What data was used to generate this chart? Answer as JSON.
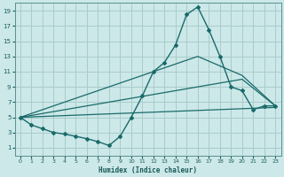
{
  "bg_color": "#cce8e8",
  "grid_color": "#aacccc",
  "line_color": "#1a6a6a",
  "xlabel": "Humidex (Indice chaleur)",
  "xlim": [
    -0.5,
    23.5
  ],
  "ylim": [
    0,
    20
  ],
  "xticks": [
    0,
    1,
    2,
    3,
    4,
    5,
    6,
    7,
    8,
    9,
    10,
    11,
    12,
    13,
    14,
    15,
    16,
    17,
    18,
    19,
    20,
    21,
    22,
    23
  ],
  "yticks": [
    1,
    3,
    5,
    7,
    9,
    11,
    13,
    15,
    17,
    19
  ],
  "line1_x": [
    0,
    1,
    2,
    3,
    4,
    5,
    6,
    7,
    8,
    9,
    10,
    11,
    12,
    13,
    14,
    15,
    16,
    17,
    18,
    19,
    20,
    21,
    22,
    23
  ],
  "line1_y": [
    5,
    4,
    3.5,
    3,
    2.8,
    2.5,
    2.2,
    1.8,
    1.3,
    2.5,
    5,
    7.8,
    11,
    12.2,
    14.5,
    18.5,
    19.5,
    16.5,
    13,
    9,
    8.5,
    6,
    6.5,
    6.5
  ],
  "line2_x": [
    0,
    16,
    20,
    23
  ],
  "line2_y": [
    5,
    13,
    10.5,
    6.5
  ],
  "line3_x": [
    0,
    20,
    23
  ],
  "line3_y": [
    5,
    10,
    6.5
  ],
  "line4_x": [
    0,
    23
  ],
  "line4_y": [
    5,
    6.3
  ]
}
